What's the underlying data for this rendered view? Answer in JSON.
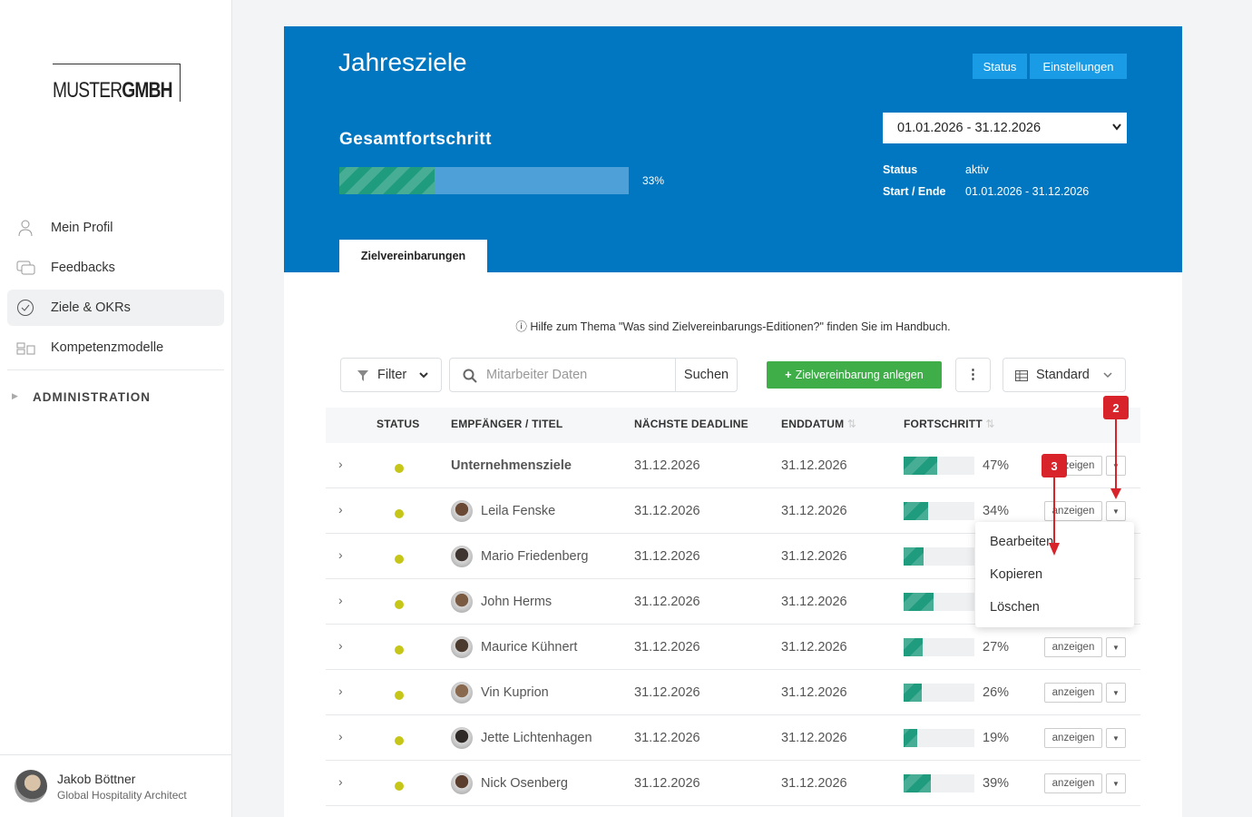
{
  "sidebar": {
    "logo": {
      "left": "MUSTER",
      "right": "GMBH"
    },
    "nav": [
      "Mein Profil",
      "Feedbacks",
      "Ziele & OKRs",
      "Kompetenzmodelle"
    ],
    "admin": "ADMINISTRATION",
    "user": {
      "name": "Jakob Böttner",
      "role": "Global Hospitality Architect"
    }
  },
  "header": {
    "title": "Jahresziele",
    "buttons": [
      "Status",
      "Einstellungen"
    ],
    "overall_label": "Gesamtfortschritt",
    "overall_progress": {
      "value": 33,
      "label": "33%"
    },
    "period_select": "01.01.2026 - 31.12.2026",
    "info": [
      {
        "key": "Status",
        "value": "aktiv"
      },
      {
        "key": "Start / Ende",
        "value": "01.01.2026 - 31.12.2026"
      }
    ],
    "tab": "Zielvereinbarungen"
  },
  "help": "Hilfe zum Thema \"Was sind Zielvereinbarungs-Editionen?\" finden Sie im Handbuch.",
  "toolbar": {
    "filter": "Filter",
    "search_placeholder": "Mitarbeiter Daten",
    "search_button": "Suchen",
    "create": "Zielvereinbarung anlegen",
    "view": "Standard"
  },
  "table": {
    "columns": [
      "STATUS",
      "EMPFÄNGER / TITEL",
      "NÄCHSTE DEADLINE",
      "ENDDATUM",
      "FORTSCHRITT"
    ],
    "action": "anzeigen",
    "rows": [
      {
        "title": "Unternehmensziele",
        "group": true,
        "deadline": "31.12.2026",
        "end": "31.12.2026",
        "progress": {
          "value": 47,
          "label": "47%"
        }
      },
      {
        "title": "Leila Fenske",
        "deadline": "31.12.2026",
        "end": "31.12.2026",
        "progress": {
          "value": 34,
          "label": "34%"
        }
      },
      {
        "title": "Mario Friedenberg",
        "deadline": "31.12.2026",
        "end": "31.12.2026",
        "progress": {
          "value": 28
        }
      },
      {
        "title": "John Herms",
        "deadline": "31.12.2026",
        "end": "31.12.2026",
        "progress": {
          "value": 42
        }
      },
      {
        "title": "Maurice Kühnert",
        "deadline": "31.12.2026",
        "end": "31.12.2026",
        "progress": {
          "value": 27,
          "label": "27%"
        }
      },
      {
        "title": "Vin Kuprion",
        "deadline": "31.12.2026",
        "end": "31.12.2026",
        "progress": {
          "value": 26,
          "label": "26%"
        }
      },
      {
        "title": "Jette Lichtenhagen",
        "deadline": "31.12.2026",
        "end": "31.12.2026",
        "progress": {
          "value": 19,
          "label": "19%"
        }
      },
      {
        "title": "Nick Osenberg",
        "deadline": "31.12.2026",
        "end": "31.12.2026",
        "progress": {
          "value": 39,
          "label": "39%"
        }
      }
    ]
  },
  "dropdown": [
    "Bearbeiten",
    "Kopieren",
    "Löschen"
  ],
  "annotations": [
    "2",
    "3"
  ]
}
